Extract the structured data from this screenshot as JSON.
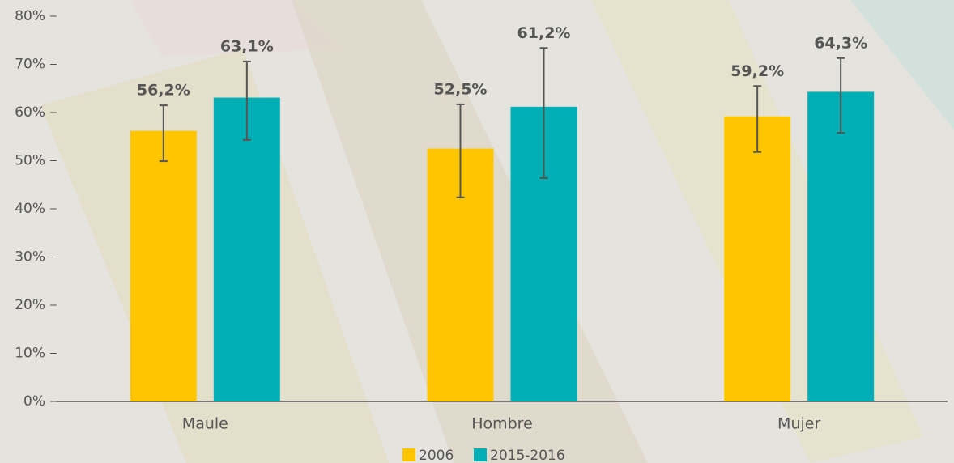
{
  "chart_data": {
    "type": "bar",
    "categories": [
      "Maule",
      "Hombre",
      "Mujer"
    ],
    "series": [
      {
        "name": "2006",
        "color": "#ffc600",
        "values": [
          56.2,
          52.5,
          59.2
        ],
        "value_labels": [
          "56,2%",
          "52,5%",
          "59,2%"
        ],
        "error_low": [
          49.9,
          42.4,
          51.8
        ],
        "error_high": [
          61.5,
          61.7,
          65.5
        ]
      },
      {
        "name": "2015-2016",
        "color": "#00aeb5",
        "values": [
          63.1,
          61.2,
          64.3
        ],
        "value_labels": [
          "63,1%",
          "61,2%",
          "64,3%"
        ],
        "error_low": [
          54.3,
          46.4,
          55.8
        ],
        "error_high": [
          70.6,
          73.4,
          71.3
        ]
      }
    ],
    "ylim": [
      0,
      80
    ],
    "yticks": [
      {
        "value": 0,
        "label": "0%"
      },
      {
        "value": 10,
        "label": "10%"
      },
      {
        "value": 20,
        "label": "20%"
      },
      {
        "value": 30,
        "label": "30%"
      },
      {
        "value": 40,
        "label": "40%"
      },
      {
        "value": 50,
        "label": "50%"
      },
      {
        "value": 60,
        "label": "60%"
      },
      {
        "value": 70,
        "label": "70%"
      },
      {
        "value": 80,
        "label": "80%"
      }
    ],
    "legend": "bottom",
    "grid": false
  }
}
